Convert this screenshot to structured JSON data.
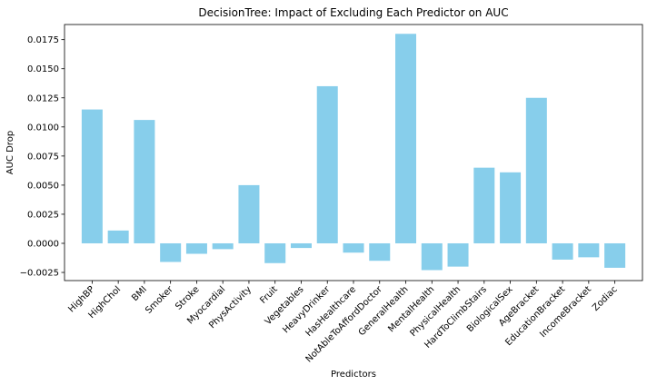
{
  "chart_data": {
    "type": "bar",
    "title": "DecisionTree: Impact of Excluding Each Predictor on AUC",
    "xlabel": "Predictors",
    "ylabel": "AUC Drop",
    "categories": [
      "HighBP",
      "HighChol",
      "BMI",
      "Smoker",
      "Stroke",
      "Myocardial",
      "PhysActivity",
      "Fruit",
      "Vegetables",
      "HeavyDrinker",
      "HasHealthcare",
      "NotAbleToAffordDoctor",
      "GeneralHealth",
      "MentalHealth",
      "PhysicalHealth",
      "HardToClimbStairs",
      "BiologicalSex",
      "AgeBracket",
      "EducationBracket",
      "IncomeBracket",
      "Zodiac"
    ],
    "values": [
      0.0115,
      0.0011,
      0.0106,
      -0.0016,
      -0.0009,
      -0.0005,
      0.005,
      -0.0017,
      -0.0004,
      0.0135,
      -0.0008,
      -0.0015,
      0.018,
      -0.0023,
      -0.002,
      0.0065,
      0.0061,
      0.0125,
      -0.0014,
      -0.0012,
      -0.0021
    ],
    "ylim": [
      -0.0032,
      0.0188
    ],
    "yticks": [
      -0.0025,
      0.0,
      0.0025,
      0.005,
      0.0075,
      0.01,
      0.0125,
      0.015,
      0.0175
    ],
    "ytick_labels": [
      "−0.0025",
      "0.0000",
      "0.0025",
      "0.0050",
      "0.0075",
      "0.0100",
      "0.0125",
      "0.0150",
      "0.0175"
    ],
    "bar_color": "#87ceeb",
    "grid": false,
    "legend": "none"
  }
}
